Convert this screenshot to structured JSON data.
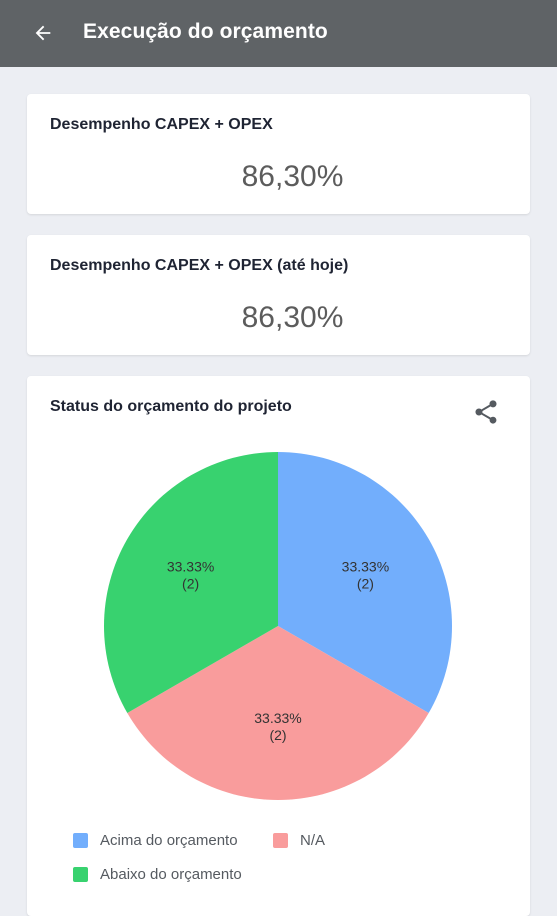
{
  "appbar": {
    "title": "Execução do orçamento",
    "back_icon": "arrow-left-icon"
  },
  "cards": [
    {
      "label": "Desempenho CAPEX + OPEX",
      "value": "86,30%"
    },
    {
      "label": "Desempenho CAPEX + OPEX (até hoje)",
      "value": "86,30%"
    }
  ],
  "status_card": {
    "title": "Status do orçamento do projeto",
    "share_icon": "share-icon"
  },
  "chart_data": {
    "type": "pie",
    "title": "Status do orçamento do projeto",
    "slices": [
      {
        "name": "Acima do orçamento",
        "value": 2,
        "percent_label": "33.33%",
        "count_label": "(2)",
        "color": "#72aefc"
      },
      {
        "name": "N/A",
        "value": 2,
        "percent_label": "33.33%",
        "count_label": "(2)",
        "color": "#f99c9c"
      },
      {
        "name": "Abaixo do orçamento",
        "value": 2,
        "percent_label": "33.33%",
        "count_label": "(2)",
        "color": "#38d26f"
      }
    ],
    "legend_position": "bottom"
  }
}
